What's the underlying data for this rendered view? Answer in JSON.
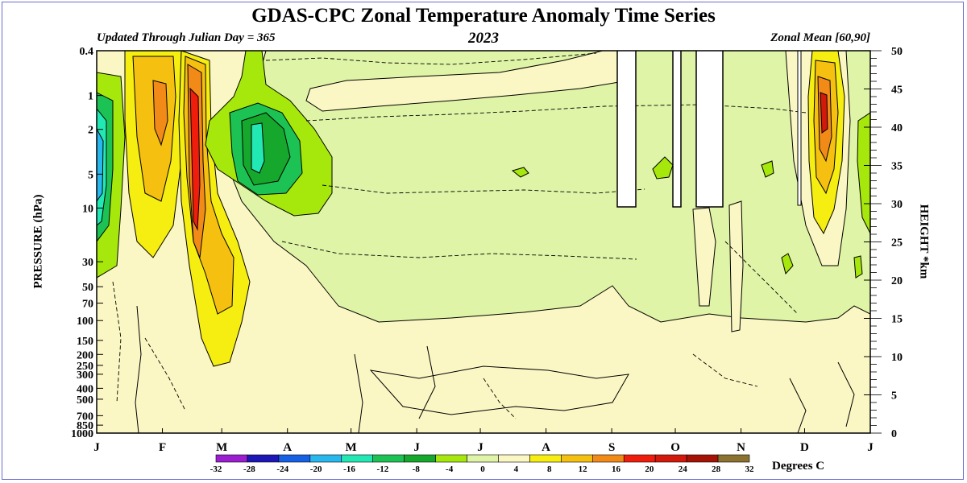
{
  "chart_data": {
    "type": "heatmap",
    "title": "GDAS-CPC Zonal Temperature Anomaly Time Series",
    "subtitle_left": "Updated Through Julian Day = 365",
    "subtitle_center": "2023",
    "subtitle_right": "Zonal Mean [60,90]",
    "ylabel_left": "PRESSURE (hPa)",
    "ylabel_right": "HEIGHT *km",
    "colorbar_label": "Degrees C",
    "x_ticks": [
      "J",
      "F",
      "M",
      "A",
      "M",
      "J",
      "J",
      "A",
      "S",
      "O",
      "N",
      "D",
      "J"
    ],
    "pressure_ticks": [
      "0.4",
      "1",
      "2",
      "5",
      "10",
      "30",
      "50",
      "70",
      "100",
      "150",
      "200",
      "250",
      "300",
      "400",
      "500",
      "700",
      "850",
      "1000"
    ],
    "height_ticks": [
      "50",
      "45",
      "40",
      "35",
      "30",
      "25",
      "20",
      "15",
      "10",
      "5",
      "0"
    ],
    "colorbar_levels": [
      "-32",
      "-28",
      "-24",
      "-20",
      "-16",
      "-12",
      "-8",
      "-4",
      "0",
      "4",
      "8",
      "12",
      "16",
      "20",
      "24",
      "28",
      "32"
    ],
    "colorbar_colors": [
      "#9b1fd0",
      "#1d17b8",
      "#1660e6",
      "#28b8ee",
      "#22e8b4",
      "#1dc254",
      "#16a82c",
      "#a6e80c",
      "#dff4a6",
      "#fbf7c4",
      "#f5ee10",
      "#f5c010",
      "#f28a18",
      "#f01c0c",
      "#d3180c",
      "#a51206",
      "#8b7230"
    ],
    "ylim_pressure_hPa": [
      1000,
      0.4
    ],
    "ylim_height_km": [
      0,
      50
    ],
    "colormap_note": "base field #dff4a6 (-4 to 0 range) with light-yellow #fbf7c4 regions, green cold anomalies (Jan, Mar-Apr upper strat), yellow/orange/red warm anomalies (Feb, Dec), white missing-data columns Sep-Oct above 10 hPa"
  }
}
